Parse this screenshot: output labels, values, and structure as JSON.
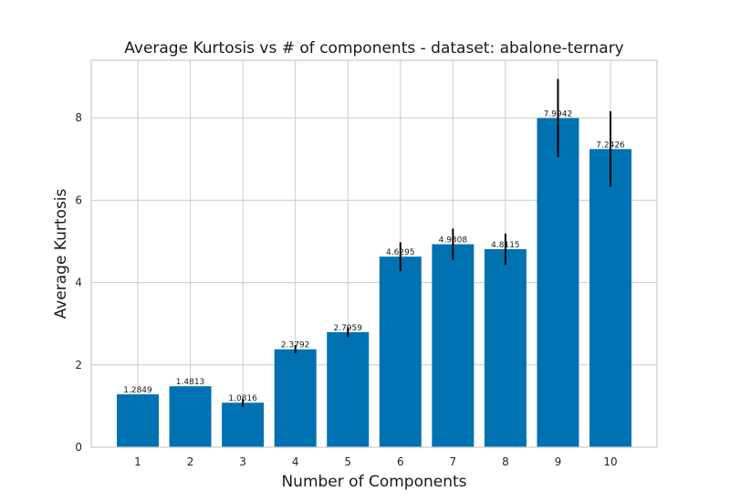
{
  "chart_data": {
    "type": "bar",
    "title": "Average Kurtosis vs # of components - dataset: abalone-ternary",
    "xlabel": "Number of Components",
    "ylabel": "Average Kurtosis",
    "categories": [
      "1",
      "2",
      "3",
      "4",
      "5",
      "6",
      "7",
      "8",
      "9",
      "10"
    ],
    "values": [
      1.2849,
      1.4813,
      1.0816,
      2.3792,
      2.7959,
      4.6295,
      4.9308,
      4.8115,
      7.9942,
      7.2426
    ],
    "value_labels": [
      "1.2849",
      "1.4813",
      "1.0816",
      "2.3792",
      "2.7959",
      "4.6295",
      "4.9308",
      "4.8115",
      "7.9942",
      "7.2426"
    ],
    "error": [
      0.0,
      0.0,
      0.1,
      0.1,
      0.12,
      0.35,
      0.38,
      0.38,
      0.95,
      0.92
    ],
    "ylim": [
      0,
      9.4
    ],
    "yticks": [
      0,
      2,
      4,
      6,
      8
    ],
    "ytick_labels": [
      "0",
      "2",
      "4",
      "6",
      "8"
    ],
    "grid": true,
    "bar_color": "#0072b2",
    "error_color": "#000000"
  }
}
